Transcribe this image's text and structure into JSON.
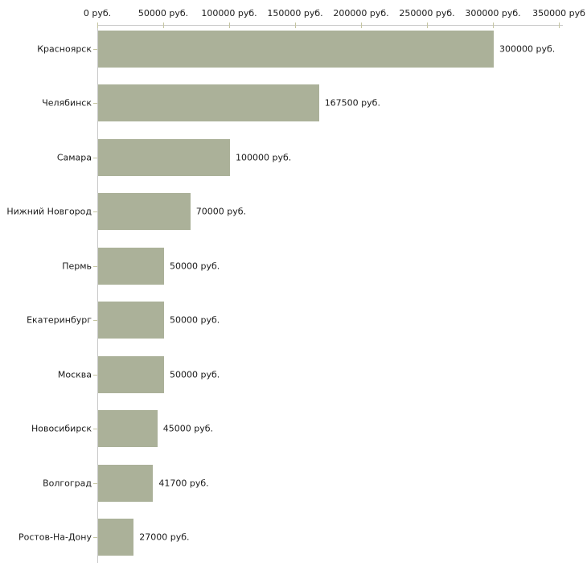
{
  "chart_data": {
    "type": "bar",
    "orientation": "horizontal",
    "title": "",
    "xlabel": "",
    "ylabel": "",
    "unit": "руб.",
    "grid": false,
    "xlim": [
      0,
      350000
    ],
    "categories": [
      "Красноярск",
      "Челябинск",
      "Самара",
      "Нижний Новгород",
      "Пермь",
      "Екатеринбург",
      "Москва",
      "Новосибирск",
      "Волгоград",
      "Ростов-На-Дону"
    ],
    "values": [
      300000,
      167500,
      100000,
      70000,
      50000,
      50000,
      50000,
      45000,
      41700,
      27000
    ],
    "value_labels": [
      "300000 руб.",
      "167500 руб.",
      "100000 руб.",
      "70000 руб.",
      "50000 руб.",
      "50000 руб.",
      "50000 руб.",
      "45000 руб.",
      "41700 руб.",
      "27000 руб."
    ],
    "x_ticks": [
      0,
      50000,
      100000,
      150000,
      200000,
      250000,
      300000,
      350000
    ],
    "x_tick_labels": [
      "0 руб.",
      "50000 руб.",
      "100000 руб.",
      "150000 руб.",
      "200000 руб.",
      "250000 руб.",
      "300000 руб.",
      "350000 руб"
    ],
    "colors": {
      "bar": "#abb199",
      "axis_line": "#c9c9c9",
      "tick_mark": "#c5c5a1",
      "text": "#1a1a1a",
      "background": "#ffffff"
    }
  }
}
